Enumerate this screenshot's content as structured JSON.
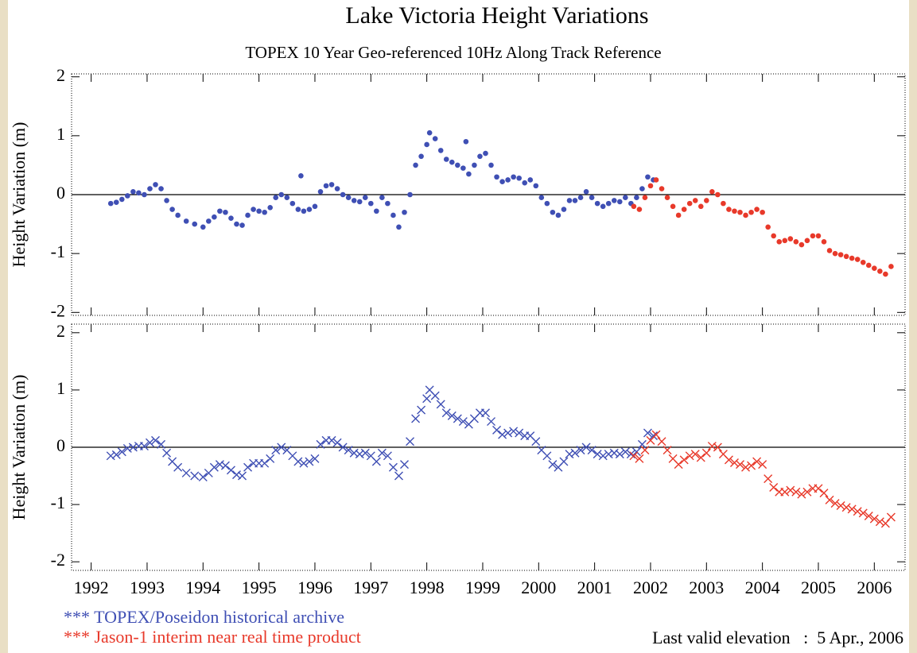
{
  "chart_data": [
    {
      "type": "scatter",
      "title": "Lake Victoria Height Variations",
      "subtitle": "TOPEX 10 Year Geo-referenced 10Hz Along Track Reference",
      "ylabel": "Height Variation (m)",
      "xlim": [
        1991.65,
        2006.55
      ],
      "ylim": [
        -2.05,
        2.05
      ],
      "yticks": [
        -2,
        -1,
        0,
        1,
        2
      ],
      "marker": "dot",
      "series": [
        {
          "color": "#3f4fb4",
          "x": [
            1992.35,
            1992.45,
            1992.55,
            1992.65,
            1992.75,
            1992.85,
            1992.95,
            1993.05,
            1993.15,
            1993.25,
            1993.35,
            1993.45,
            1993.55,
            1993.7,
            1993.85,
            1994.0,
            1994.1,
            1994.2,
            1994.3,
            1994.4,
            1994.5,
            1994.6,
            1994.7,
            1994.8,
            1994.9,
            1995.0,
            1995.1,
            1995.2,
            1995.3,
            1995.4,
            1995.5,
            1995.6,
            1995.7,
            1995.75,
            1995.8,
            1995.9,
            1996.0,
            1996.1,
            1996.2,
            1996.3,
            1996.4,
            1996.5,
            1996.6,
            1996.7,
            1996.8,
            1996.9,
            1997.0,
            1997.1,
            1997.2,
            1997.3,
            1997.4,
            1997.5,
            1997.6,
            1997.7,
            1997.8,
            1997.9,
            1998.0,
            1998.05,
            1998.15,
            1998.25,
            1998.35,
            1998.45,
            1998.55,
            1998.65,
            1998.7,
            1998.75,
            1998.85,
            1998.95,
            1999.05,
            1999.15,
            1999.25,
            1999.35,
            1999.45,
            1999.55,
            1999.65,
            1999.75,
            1999.85,
            1999.95,
            2000.05,
            2000.15,
            2000.25,
            2000.35,
            2000.45,
            2000.55,
            2000.65,
            2000.75,
            2000.85,
            2000.95,
            2001.05,
            2001.15,
            2001.25,
            2001.35,
            2001.45,
            2001.55,
            2001.65,
            2001.75,
            2001.85,
            2001.95,
            2002.05
          ],
          "values": [
            -0.15,
            -0.13,
            -0.08,
            -0.02,
            0.05,
            0.03,
            0.0,
            0.1,
            0.17,
            0.1,
            -0.1,
            -0.25,
            -0.35,
            -0.45,
            -0.5,
            -0.55,
            -0.45,
            -0.38,
            -0.28,
            -0.3,
            -0.4,
            -0.5,
            -0.52,
            -0.35,
            -0.25,
            -0.28,
            -0.3,
            -0.22,
            -0.05,
            0.0,
            -0.05,
            -0.15,
            -0.25,
            0.32,
            -0.28,
            -0.25,
            -0.2,
            0.05,
            0.15,
            0.17,
            0.1,
            0.0,
            -0.05,
            -0.1,
            -0.12,
            -0.05,
            -0.15,
            -0.28,
            -0.05,
            -0.15,
            -0.35,
            -0.55,
            -0.3,
            0.0,
            0.5,
            0.65,
            0.85,
            1.05,
            0.95,
            0.75,
            0.6,
            0.55,
            0.5,
            0.45,
            0.9,
            0.35,
            0.5,
            0.65,
            0.7,
            0.5,
            0.3,
            0.22,
            0.25,
            0.3,
            0.28,
            0.2,
            0.25,
            0.15,
            -0.05,
            -0.15,
            -0.3,
            -0.35,
            -0.25,
            -0.1,
            -0.1,
            -0.05,
            0.05,
            -0.05,
            -0.15,
            -0.2,
            -0.15,
            -0.1,
            -0.12,
            -0.05,
            -0.15,
            -0.05,
            0.1,
            0.3,
            0.25
          ]
        },
        {
          "color": "#e8392a",
          "x": [
            2001.7,
            2001.8,
            2001.9,
            2002.0,
            2002.1,
            2002.2,
            2002.3,
            2002.4,
            2002.5,
            2002.6,
            2002.7,
            2002.8,
            2002.9,
            2003.0,
            2003.1,
            2003.2,
            2003.3,
            2003.4,
            2003.5,
            2003.6,
            2003.7,
            2003.8,
            2003.9,
            2004.0,
            2004.1,
            2004.2,
            2004.3,
            2004.4,
            2004.5,
            2004.6,
            2004.7,
            2004.8,
            2004.9,
            2005.0,
            2005.1,
            2005.2,
            2005.3,
            2005.4,
            2005.5,
            2005.6,
            2005.7,
            2005.8,
            2005.9,
            2006.0,
            2006.1,
            2006.2,
            2006.3
          ],
          "values": [
            -0.2,
            -0.25,
            -0.05,
            0.15,
            0.25,
            0.1,
            -0.05,
            -0.2,
            -0.35,
            -0.25,
            -0.15,
            -0.1,
            -0.2,
            -0.1,
            0.05,
            0.0,
            -0.15,
            -0.25,
            -0.28,
            -0.3,
            -0.35,
            -0.3,
            -0.25,
            -0.3,
            -0.55,
            -0.7,
            -0.8,
            -0.78,
            -0.75,
            -0.8,
            -0.85,
            -0.78,
            -0.7,
            -0.7,
            -0.8,
            -0.95,
            -1.0,
            -1.02,
            -1.05,
            -1.08,
            -1.1,
            -1.15,
            -1.2,
            -1.25,
            -1.3,
            -1.35,
            -1.22
          ]
        }
      ]
    },
    {
      "type": "scatter",
      "ylabel": "Height Variation (m)",
      "xlim": [
        1991.65,
        2006.55
      ],
      "ylim": [
        -2.15,
        2.15
      ],
      "yticks": [
        -2,
        -1,
        0,
        1,
        2
      ],
      "marker": "cross",
      "xticks": [
        1992,
        1993,
        1994,
        1995,
        1996,
        1997,
        1998,
        1999,
        2000,
        2001,
        2002,
        2003,
        2004,
        2005,
        2006
      ],
      "annotation": "Last valid elevation   :  5 Apr., 2006",
      "series": [
        {
          "name": "*** TOPEX/Poseidon historical archive",
          "color": "#3f4fb4",
          "x": [
            1992.35,
            1992.45,
            1992.55,
            1992.65,
            1992.75,
            1992.85,
            1992.95,
            1993.05,
            1993.15,
            1993.25,
            1993.35,
            1993.45,
            1993.55,
            1993.7,
            1993.85,
            1994.0,
            1994.1,
            1994.2,
            1994.3,
            1994.4,
            1994.5,
            1994.6,
            1994.7,
            1994.8,
            1994.9,
            1995.0,
            1995.1,
            1995.2,
            1995.3,
            1995.4,
            1995.5,
            1995.6,
            1995.7,
            1995.8,
            1995.9,
            1996.0,
            1996.1,
            1996.2,
            1996.3,
            1996.4,
            1996.5,
            1996.6,
            1996.7,
            1996.8,
            1996.9,
            1997.0,
            1997.1,
            1997.2,
            1997.3,
            1997.4,
            1997.5,
            1997.6,
            1997.7,
            1997.8,
            1997.9,
            1998.0,
            1998.05,
            1998.15,
            1998.25,
            1998.35,
            1998.45,
            1998.55,
            1998.65,
            1998.75,
            1998.85,
            1998.95,
            1999.05,
            1999.15,
            1999.25,
            1999.35,
            1999.45,
            1999.55,
            1999.65,
            1999.75,
            1999.85,
            1999.95,
            2000.05,
            2000.15,
            2000.25,
            2000.35,
            2000.45,
            2000.55,
            2000.65,
            2000.75,
            2000.85,
            2000.95,
            2001.05,
            2001.15,
            2001.25,
            2001.35,
            2001.45,
            2001.55,
            2001.65,
            2001.75,
            2001.85,
            2001.95,
            2002.05
          ],
          "values": [
            -0.15,
            -0.13,
            -0.08,
            -0.02,
            0.0,
            0.02,
            0.02,
            0.08,
            0.12,
            0.05,
            -0.1,
            -0.25,
            -0.35,
            -0.45,
            -0.5,
            -0.52,
            -0.45,
            -0.35,
            -0.3,
            -0.32,
            -0.4,
            -0.48,
            -0.5,
            -0.35,
            -0.28,
            -0.28,
            -0.28,
            -0.2,
            -0.05,
            0.0,
            -0.05,
            -0.15,
            -0.25,
            -0.28,
            -0.25,
            -0.2,
            0.05,
            0.12,
            0.12,
            0.08,
            0.0,
            -0.05,
            -0.1,
            -0.12,
            -0.1,
            -0.15,
            -0.25,
            -0.1,
            -0.15,
            -0.35,
            -0.5,
            -0.3,
            0.1,
            0.5,
            0.65,
            0.85,
            1.0,
            0.9,
            0.75,
            0.6,
            0.55,
            0.5,
            0.45,
            0.4,
            0.5,
            0.6,
            0.6,
            0.45,
            0.3,
            0.22,
            0.25,
            0.28,
            0.25,
            0.2,
            0.2,
            0.1,
            -0.05,
            -0.15,
            -0.3,
            -0.35,
            -0.25,
            -0.12,
            -0.1,
            -0.05,
            0.0,
            -0.05,
            -0.12,
            -0.15,
            -0.12,
            -0.1,
            -0.12,
            -0.08,
            -0.12,
            -0.08,
            0.05,
            0.25,
            0.2
          ]
        },
        {
          "name": "*** Jason-1 interim near real time product",
          "color": "#e8392a",
          "x": [
            2001.7,
            2001.8,
            2001.9,
            2002.0,
            2002.1,
            2002.2,
            2002.3,
            2002.4,
            2002.5,
            2002.6,
            2002.7,
            2002.8,
            2002.9,
            2003.0,
            2003.1,
            2003.2,
            2003.3,
            2003.4,
            2003.5,
            2003.6,
            2003.7,
            2003.8,
            2003.9,
            2004.0,
            2004.1,
            2004.2,
            2004.3,
            2004.4,
            2004.5,
            2004.6,
            2004.7,
            2004.8,
            2004.9,
            2005.0,
            2005.1,
            2005.2,
            2005.3,
            2005.4,
            2005.5,
            2005.6,
            2005.7,
            2005.8,
            2005.9,
            2006.0,
            2006.1,
            2006.2,
            2006.3
          ],
          "values": [
            -0.15,
            -0.2,
            -0.05,
            0.12,
            0.22,
            0.1,
            -0.05,
            -0.2,
            -0.3,
            -0.22,
            -0.15,
            -0.12,
            -0.18,
            -0.1,
            0.02,
            0.0,
            -0.12,
            -0.22,
            -0.27,
            -0.3,
            -0.35,
            -0.32,
            -0.25,
            -0.3,
            -0.55,
            -0.7,
            -0.78,
            -0.78,
            -0.75,
            -0.78,
            -0.82,
            -0.78,
            -0.72,
            -0.72,
            -0.8,
            -0.92,
            -0.98,
            -1.02,
            -1.05,
            -1.08,
            -1.12,
            -1.15,
            -1.2,
            -1.25,
            -1.3,
            -1.33,
            -1.22
          ]
        }
      ]
    }
  ]
}
